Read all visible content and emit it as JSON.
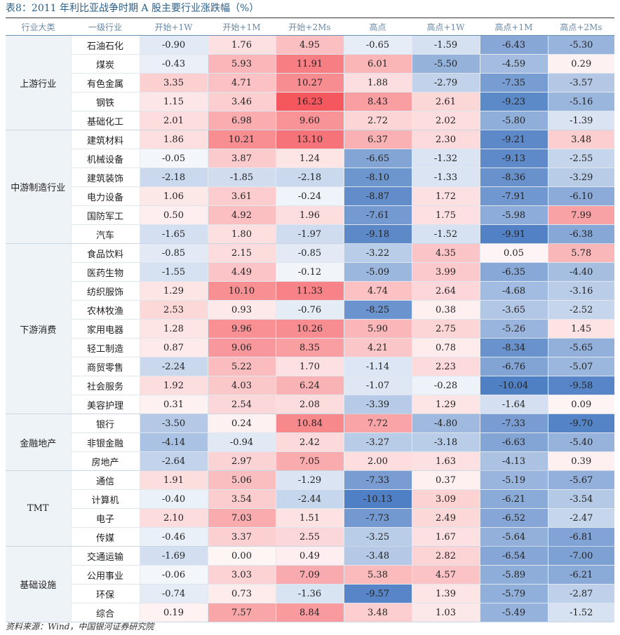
{
  "title": "表8：2011 年利比亚战争时期 A 股主要行业涨跌幅（%）",
  "footer": "资料来源：Wind，中国银河证券研究院",
  "columns": [
    "行业大类",
    "一级行业",
    "开始+1W",
    "开始+1M",
    "开始+2Ms",
    "高点",
    "高点+1W",
    "高点+1M",
    "高点+2Ms"
  ],
  "colors": {
    "positive": "#f4585e",
    "negative": "#4f7fc4",
    "title": "#2a5f8a",
    "group_bg": "#eef3f8"
  },
  "groups": [
    {
      "name": "上游行业",
      "rows": [
        {
          "name": "石油石化",
          "values": [
            -0.9,
            1.76,
            4.95,
            -0.65,
            -1.59,
            -6.43,
            -5.3
          ]
        },
        {
          "name": "煤炭",
          "values": [
            -0.43,
            5.93,
            11.91,
            6.01,
            -5.5,
            -4.59,
            0.29
          ]
        },
        {
          "name": "有色金属",
          "values": [
            3.35,
            4.71,
            10.27,
            1.88,
            -2.79,
            -7.35,
            -3.57
          ]
        },
        {
          "name": "钢铁",
          "values": [
            1.15,
            3.46,
            16.23,
            8.43,
            2.61,
            -9.23,
            -5.16
          ]
        },
        {
          "name": "基础化工",
          "values": [
            2.01,
            6.98,
            9.6,
            2.72,
            2.02,
            -5.8,
            -1.39
          ]
        }
      ]
    },
    {
      "name": "中游制造行业",
      "rows": [
        {
          "name": "建筑材料",
          "values": [
            1.86,
            10.21,
            13.1,
            6.37,
            2.3,
            -9.21,
            3.48
          ]
        },
        {
          "name": "机械设备",
          "values": [
            -0.05,
            3.87,
            1.24,
            -6.65,
            -1.32,
            -9.13,
            -2.55
          ]
        },
        {
          "name": "建筑装饰",
          "values": [
            -2.18,
            -1.85,
            -2.18,
            -8.1,
            -1.33,
            -8.36,
            -3.29
          ]
        },
        {
          "name": "电力设备",
          "values": [
            1.06,
            3.61,
            -0.24,
            -8.87,
            1.72,
            -7.91,
            -6.1
          ]
        },
        {
          "name": "国防军工",
          "values": [
            0.5,
            4.92,
            1.96,
            -7.61,
            1.75,
            -5.98,
            7.99
          ]
        },
        {
          "name": "汽车",
          "values": [
            -1.65,
            1.8,
            -1.97,
            -9.18,
            -1.52,
            -9.91,
            -6.38
          ]
        }
      ]
    },
    {
      "name": "下游消费",
      "rows": [
        {
          "name": "食品饮料",
          "values": [
            -0.85,
            2.15,
            -0.85,
            -3.22,
            4.35,
            0.05,
            5.78
          ]
        },
        {
          "name": "医药生物",
          "values": [
            -1.55,
            4.49,
            -0.12,
            -5.09,
            3.99,
            -6.35,
            -4.4
          ]
        },
        {
          "name": "纺织服饰",
          "values": [
            1.29,
            10.1,
            11.33,
            4.74,
            2.64,
            -4.68,
            -3.16
          ]
        },
        {
          "name": "农林牧渔",
          "values": [
            2.53,
            0.93,
            -0.76,
            -8.25,
            0.38,
            -3.65,
            -2.52
          ]
        },
        {
          "name": "家用电器",
          "values": [
            1.28,
            9.96,
            10.26,
            5.9,
            2.75,
            -5.26,
            1.45
          ]
        },
        {
          "name": "轻工制造",
          "values": [
            0.87,
            9.06,
            8.35,
            4.21,
            0.78,
            -8.34,
            -5.65
          ]
        },
        {
          "name": "商贸零售",
          "values": [
            -2.24,
            5.22,
            1.7,
            -1.14,
            2.23,
            -6.76,
            -5.07
          ]
        },
        {
          "name": "社会服务",
          "values": [
            1.92,
            4.03,
            6.24,
            -1.07,
            -0.28,
            -10.04,
            -9.58
          ]
        },
        {
          "name": "美容护理",
          "values": [
            0.31,
            2.54,
            2.08,
            -3.39,
            1.29,
            -1.64,
            0.09
          ]
        }
      ]
    },
    {
      "name": "金融地产",
      "rows": [
        {
          "name": "银行",
          "values": [
            -3.5,
            0.24,
            10.84,
            7.72,
            -4.8,
            -7.33,
            -9.7
          ]
        },
        {
          "name": "非银金融",
          "values": [
            -4.14,
            -0.94,
            2.42,
            -3.27,
            -3.18,
            -6.63,
            -5.4
          ]
        },
        {
          "name": "房地产",
          "values": [
            -2.64,
            2.97,
            7.05,
            2.0,
            1.63,
            -4.13,
            0.39
          ]
        }
      ]
    },
    {
      "name": "TMT",
      "rows": [
        {
          "name": "通信",
          "values": [
            1.91,
            5.06,
            -1.29,
            -7.33,
            0.37,
            -5.19,
            -5.67
          ]
        },
        {
          "name": "计算机",
          "values": [
            -0.4,
            3.54,
            -2.44,
            -10.13,
            3.09,
            -6.21,
            -3.54
          ]
        },
        {
          "name": "电子",
          "values": [
            2.1,
            7.03,
            1.51,
            -7.73,
            2.49,
            -6.52,
            -2.47
          ]
        },
        {
          "name": "传媒",
          "values": [
            -0.46,
            3.37,
            2.55,
            -3.25,
            1.67,
            -5.64,
            -6.81
          ]
        }
      ]
    },
    {
      "name": "基础设施",
      "rows": [
        {
          "name": "交通运输",
          "values": [
            -1.69,
            0.0,
            0.49,
            -3.48,
            2.82,
            -6.54,
            -7.0
          ]
        },
        {
          "name": "公用事业",
          "values": [
            -0.06,
            3.03,
            7.09,
            5.38,
            4.57,
            -5.89,
            -6.21
          ]
        },
        {
          "name": "环保",
          "values": [
            -0.74,
            0.73,
            -1.36,
            -9.57,
            1.39,
            -5.79,
            -2.87
          ]
        },
        {
          "name": "综合",
          "values": [
            0.19,
            7.57,
            8.84,
            3.48,
            1.03,
            -5.49,
            -1.52
          ]
        }
      ]
    }
  ]
}
